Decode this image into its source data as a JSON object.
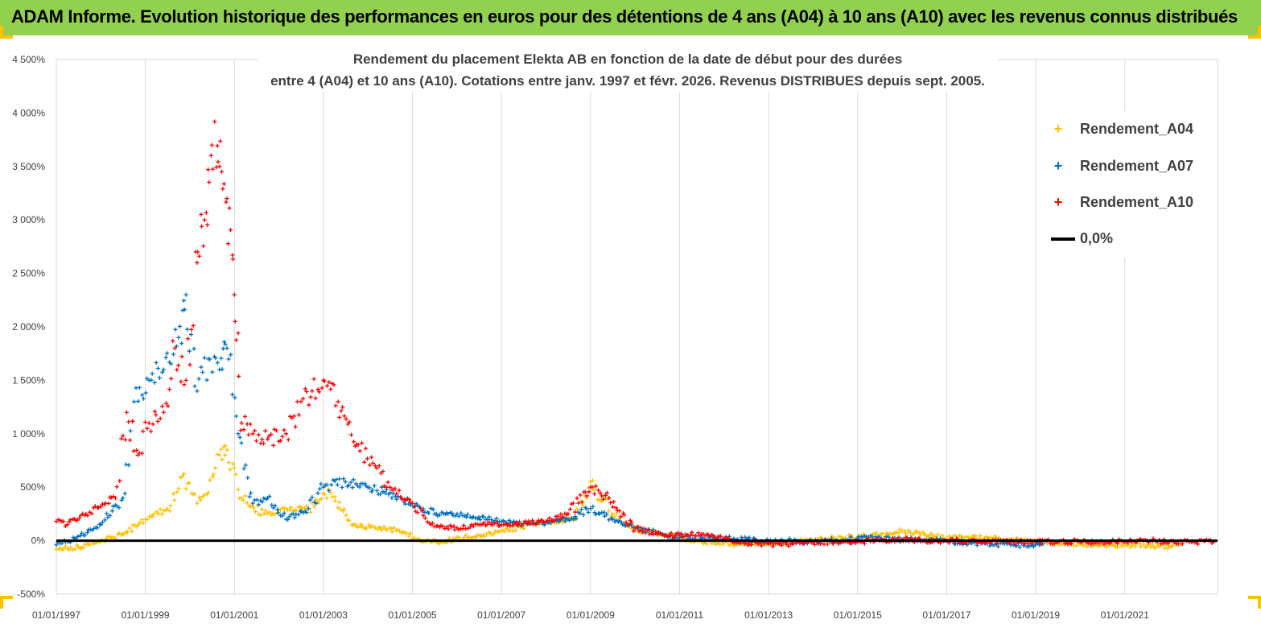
{
  "header": {
    "title": "ADAM Informe. Evolution historique des performances en euros pour des détentions de 4 ans (A04) à 10 ans (A10) avec les revenus connus distribués",
    "background": "#92D050",
    "corner_color": "#FFC000"
  },
  "chart_data": {
    "type": "scatter",
    "title_lines": [
      "Rendement du placement Elekta AB en fonction de la date de début pour des durées",
      "entre 4 (A04) et 10 ans (A10).  Cotations entre janv. 1997 et févr. 2026. Revenus DISTRIBUES depuis sept. 2005."
    ],
    "xlabel": "",
    "ylabel": "",
    "xlim": [
      "1997-01-01",
      "2023-02-01"
    ],
    "ylim": [
      -500,
      4500
    ],
    "y_ticks": [
      -500,
      0,
      500,
      1000,
      1500,
      2000,
      2500,
      3000,
      3500,
      4000,
      4500
    ],
    "y_tick_labels": [
      "-500%",
      "0%",
      "500%",
      "1 000%",
      "1 500%",
      "2 000%",
      "2 500%",
      "3 000%",
      "3 500%",
      "4 000%",
      "4 500%"
    ],
    "x_ticks": [
      "1997-01-01",
      "1999-01-01",
      "2001-01-01",
      "2003-01-01",
      "2005-01-01",
      "2007-01-01",
      "2009-01-01",
      "2011-01-01",
      "2013-01-01",
      "2015-01-01",
      "2017-01-01",
      "2019-01-01",
      "2021-01-01"
    ],
    "x_tick_labels": [
      "01/01/1997",
      "01/01/1999",
      "01/01/2001",
      "01/01/2003",
      "01/01/2005",
      "01/01/2007",
      "01/01/2009",
      "01/01/2011",
      "01/01/2013",
      "01/01/2015",
      "01/01/2017",
      "01/01/2019",
      "01/01/2021"
    ],
    "grid": "vertical",
    "legend_position": "top-right",
    "series": [
      {
        "name": "Rendement_A04",
        "color": "#FFC000",
        "marker": "+",
        "x": [
          "1997-01-01",
          "1997-07-01",
          "1998-01-01",
          "1998-07-01",
          "1999-01-01",
          "1999-07-01",
          "1999-11-01",
          "2000-03-01",
          "2000-06-01",
          "2000-09-01",
          "2000-11-01",
          "2001-03-01",
          "2001-09-01",
          "2002-03-01",
          "2002-09-01",
          "2003-03-01",
          "2003-09-01",
          "2004-03-01",
          "2004-09-01",
          "2005-03-01",
          "2005-09-01",
          "2006-03-01",
          "2006-09-01",
          "2007-03-01",
          "2007-09-01",
          "2008-03-01",
          "2008-09-01",
          "2009-01-01",
          "2009-07-01",
          "2010-01-01",
          "2010-07-01",
          "2011-01-01",
          "2011-07-01",
          "2012-01-01",
          "2012-07-01",
          "2013-01-01",
          "2013-07-01",
          "2014-01-01",
          "2014-07-01",
          "2015-01-01",
          "2015-07-01",
          "2016-01-01",
          "2016-07-01",
          "2017-01-01",
          "2017-07-01",
          "2018-01-01",
          "2018-07-01",
          "2019-01-01",
          "2019-07-01",
          "2020-01-01",
          "2020-07-01",
          "2021-01-01",
          "2021-07-01",
          "2022-01-01",
          "2022-04-01"
        ],
        "values": [
          -80,
          -60,
          0,
          60,
          200,
          300,
          600,
          350,
          450,
          800,
          850,
          400,
          250,
          300,
          300,
          450,
          150,
          120,
          100,
          10,
          -10,
          30,
          60,
          100,
          150,
          180,
          200,
          550,
          250,
          100,
          80,
          20,
          -10,
          -20,
          -30,
          -20,
          -10,
          0,
          20,
          40,
          50,
          90,
          60,
          20,
          30,
          30,
          10,
          -20,
          -20,
          -30,
          -40,
          -40,
          -50,
          -50,
          -40
        ]
      },
      {
        "name": "Rendement_A07",
        "color": "#0070C0",
        "marker": "+",
        "x": [
          "1997-01-01",
          "1997-06-01",
          "1998-01-01",
          "1998-07-01",
          "1998-10-01",
          "1999-02-01",
          "1999-06-01",
          "1999-10-01",
          "1999-12-01",
          "2000-03-01",
          "2000-06-01",
          "2000-09-01",
          "2000-11-01",
          "2001-02-01",
          "2001-06-01",
          "2001-10-01",
          "2002-03-01",
          "2002-09-01",
          "2003-01-01",
          "2003-07-01",
          "2004-01-01",
          "2004-07-01",
          "2005-01-01",
          "2005-07-01",
          "2006-01-01",
          "2006-07-01",
          "2007-01-01",
          "2007-07-01",
          "2008-01-01",
          "2008-07-01",
          "2009-01-01",
          "2009-07-01",
          "2010-01-01",
          "2010-07-01",
          "2011-01-01",
          "2011-07-01",
          "2012-01-01",
          "2012-07-01",
          "2013-01-01",
          "2013-07-01",
          "2014-01-01",
          "2014-07-01",
          "2015-01-01",
          "2015-07-01",
          "2016-01-01",
          "2016-07-01",
          "2017-01-01",
          "2017-07-01",
          "2018-01-01",
          "2018-07-01",
          "2019-01-01",
          "2019-03-01"
        ],
        "values": [
          -40,
          20,
          150,
          400,
          1300,
          1500,
          1600,
          1900,
          2300,
          1400,
          1700,
          1600,
          1800,
          1000,
          350,
          400,
          200,
          300,
          500,
          550,
          500,
          450,
          350,
          250,
          250,
          220,
          180,
          160,
          170,
          200,
          300,
          200,
          120,
          70,
          30,
          30,
          20,
          10,
          -10,
          0,
          -10,
          0,
          20,
          30,
          10,
          10,
          0,
          -20,
          -30,
          -40,
          -40,
          -30
        ]
      },
      {
        "name": "Rendement_A10",
        "color": "#FF0000",
        "marker": "+",
        "x": [
          "1997-01-01",
          "1997-04-01",
          "1997-09-01",
          "1998-01-01",
          "1998-05-01",
          "1998-08-01",
          "1998-11-01",
          "1999-02-01",
          "1999-06-01",
          "1999-09-01",
          "1999-12-01",
          "2000-03-01",
          "2000-05-01",
          "2000-07-01",
          "2000-09-01",
          "2000-11-01",
          "2001-01-01",
          "2001-03-01",
          "2001-06-01",
          "2001-10-01",
          "2002-03-01",
          "2002-07-01",
          "2002-10-01",
          "2003-01-01",
          "2003-05-01",
          "2003-10-01",
          "2004-03-01",
          "2004-07-01",
          "2005-01-01",
          "2005-06-01",
          "2006-01-01",
          "2006-07-01",
          "2007-01-01",
          "2007-07-01",
          "2008-01-01",
          "2008-07-01",
          "2009-01-01",
          "2009-06-01",
          "2010-01-01",
          "2010-07-01",
          "2011-01-01",
          "2011-07-01",
          "2012-01-01",
          "2012-07-01",
          "2013-01-01",
          "2013-07-01",
          "2014-01-01",
          "2014-07-01",
          "2015-01-01",
          "2015-07-01",
          "2016-01-01",
          "2016-07-01",
          "2017-01-01",
          "2017-07-01",
          "2018-01-01",
          "2018-07-01",
          "2019-01-01",
          "2019-07-01",
          "2020-01-01",
          "2020-07-01",
          "2021-01-01",
          "2021-07-01",
          "2022-01-01",
          "2022-07-01",
          "2023-01-01"
        ],
        "values": [
          180,
          150,
          250,
          320,
          400,
          1200,
          800,
          1100,
          1200,
          1800,
          1500,
          2600,
          3000,
          3700,
          3500,
          3200,
          2300,
          1100,
          1000,
          950,
          1000,
          1300,
          1400,
          1500,
          1300,
          900,
          700,
          500,
          350,
          150,
          120,
          150,
          150,
          160,
          180,
          250,
          500,
          400,
          120,
          60,
          50,
          60,
          20,
          -20,
          -30,
          -30,
          -20,
          -10,
          -10,
          0,
          10,
          0,
          0,
          0,
          -10,
          -10,
          -10,
          -10,
          -10,
          -10,
          -10,
          0,
          -10,
          -10,
          -10
        ]
      }
    ],
    "baseline": {
      "name": "0,0%",
      "value": 0,
      "color": "#000000"
    }
  }
}
